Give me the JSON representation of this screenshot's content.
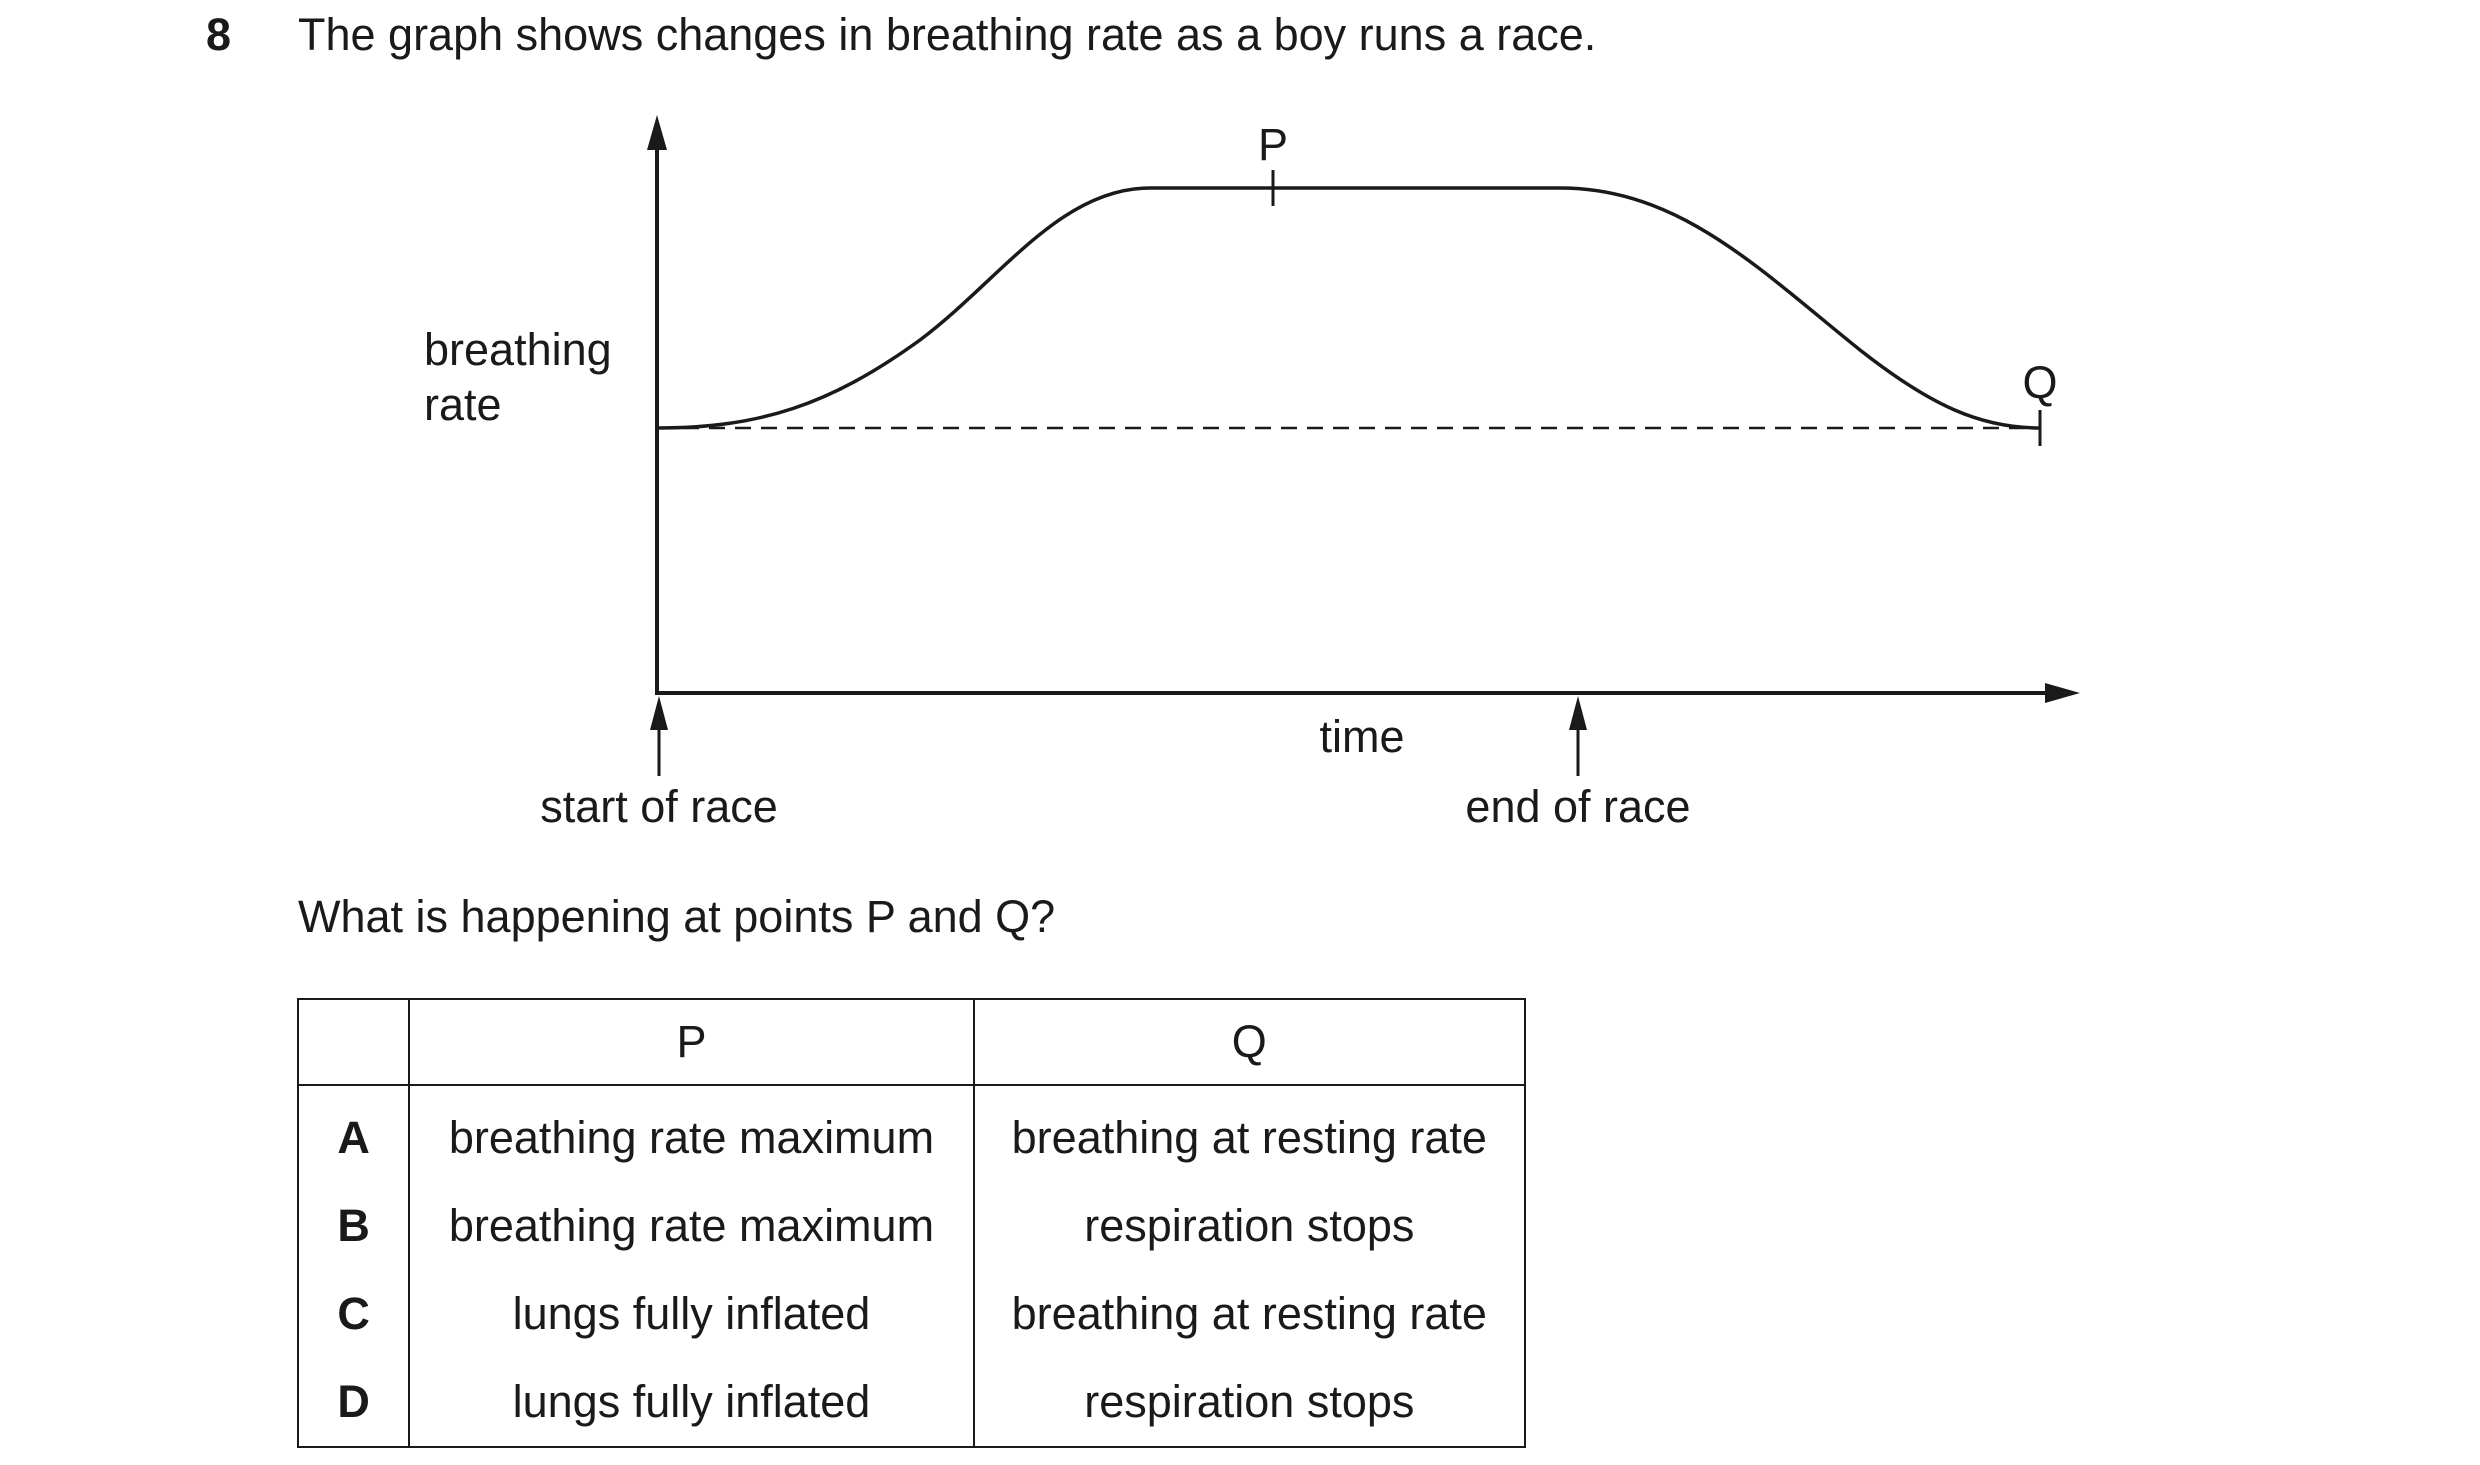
{
  "question": {
    "number": "8",
    "stem": "The graph shows changes in breathing rate as a boy runs a race.",
    "prompt": "What is happening at points P and Q?"
  },
  "graph": {
    "y_axis_label_line1": "breathing",
    "y_axis_label_line2": "rate",
    "x_axis_label": "time",
    "start_label": "start of race",
    "end_label": "end of race",
    "point_p": "P",
    "point_q": "Q"
  },
  "table": {
    "headers": [
      "",
      "P",
      "Q"
    ],
    "rows": [
      {
        "letter": "A",
        "p": "breathing rate maximum",
        "q": "breathing at resting rate"
      },
      {
        "letter": "B",
        "p": "breathing rate maximum",
        "q": "respiration stops"
      },
      {
        "letter": "C",
        "p": "lungs fully inflated",
        "q": "breathing at resting rate"
      },
      {
        "letter": "D",
        "p": "lungs fully inflated",
        "q": "respiration stops"
      }
    ]
  }
}
